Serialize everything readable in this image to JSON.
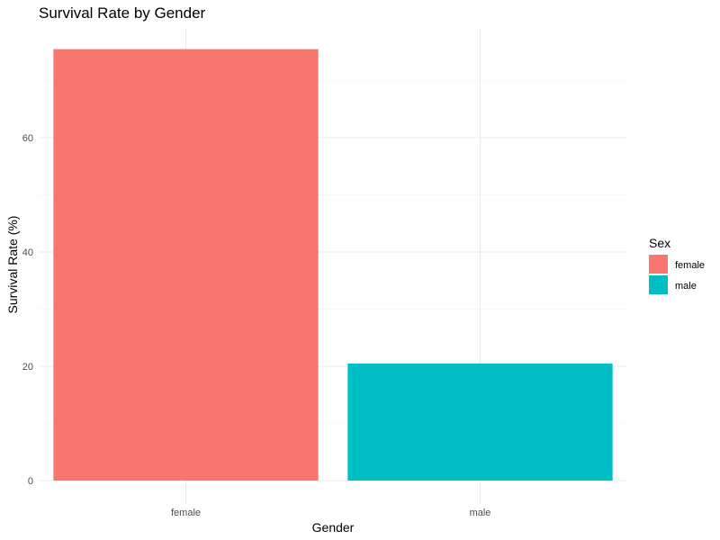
{
  "chart_data": {
    "type": "bar",
    "title": "Survival Rate by Gender",
    "xlabel": "Gender",
    "ylabel": "Survival Rate (%)",
    "categories": [
      "female",
      "male"
    ],
    "values": [
      75.5,
      20.5
    ],
    "colors": [
      "#F8766D",
      "#00BFC4"
    ],
    "ylim": [
      0,
      78
    ],
    "yticks": [
      0,
      20,
      40,
      60
    ],
    "grid": true,
    "legend": {
      "title": "Sex",
      "placement": "right",
      "entries": [
        {
          "label": "female",
          "color": "#F8766D"
        },
        {
          "label": "male",
          "color": "#00BFC4"
        }
      ]
    }
  }
}
